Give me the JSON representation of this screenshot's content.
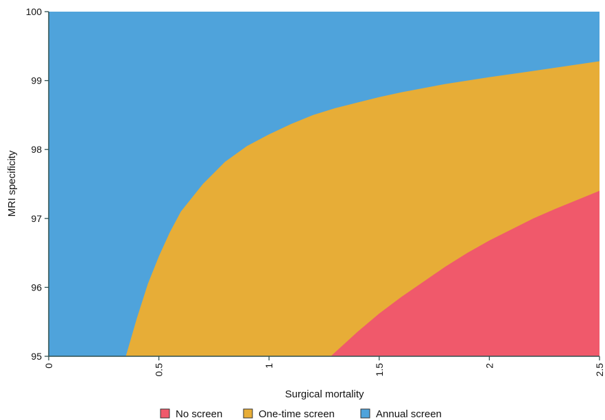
{
  "chart_data": {
    "type": "area",
    "title": "",
    "xlabel": "Surgical mortality",
    "ylabel": "MRI specificity",
    "xlim": [
      0,
      2.5
    ],
    "ylim": [
      95,
      100
    ],
    "x_ticks": [
      0,
      0.5,
      1,
      1.5,
      2,
      2.5
    ],
    "x_tick_labels": [
      "0",
      "0.5",
      "1",
      "1.5",
      "2",
      "2.5"
    ],
    "y_ticks": [
      95,
      96,
      97,
      98,
      99,
      100
    ],
    "y_tick_labels": [
      "95",
      "96",
      "97",
      "98",
      "99",
      "100"
    ],
    "grid": false,
    "legend_position": "bottom",
    "regions": [
      {
        "name": "No screen",
        "color": "#f0596b",
        "boundary_upper": {
          "x": [
            1.28,
            1.4,
            1.5,
            1.6,
            1.7,
            1.8,
            1.9,
            2.0,
            2.1,
            2.2,
            2.3,
            2.4,
            2.5
          ],
          "y": [
            95.0,
            95.35,
            95.62,
            95.86,
            96.08,
            96.3,
            96.5,
            96.68,
            96.84,
            97.0,
            97.14,
            97.27,
            97.4
          ]
        }
      },
      {
        "name": "One-time screen",
        "color": "#e7ad37",
        "boundary_upper": {
          "x": [
            0.35,
            0.4,
            0.45,
            0.5,
            0.55,
            0.6,
            0.7,
            0.8,
            0.9,
            1.0,
            1.1,
            1.2,
            1.3,
            1.4,
            1.5,
            1.6,
            1.8,
            2.0,
            2.2,
            2.5
          ],
          "y": [
            95.0,
            95.55,
            96.05,
            96.45,
            96.8,
            97.1,
            97.5,
            97.82,
            98.05,
            98.22,
            98.37,
            98.5,
            98.6,
            98.68,
            98.76,
            98.83,
            98.95,
            99.05,
            99.14,
            99.28
          ]
        }
      },
      {
        "name": "Annual screen",
        "color": "#4fa3db",
        "boundary_upper": {
          "x": [
            0,
            2.5
          ],
          "y": [
            100,
            100
          ]
        }
      }
    ]
  }
}
